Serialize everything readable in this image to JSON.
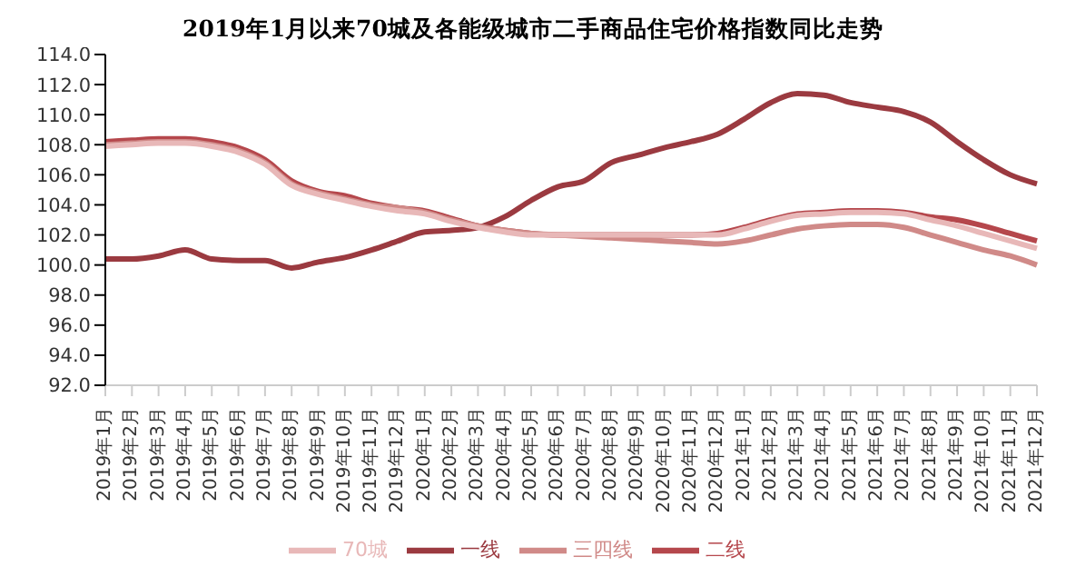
{
  "chart_data": {
    "type": "line",
    "title": "2019年1月以来70城及各能级城市二手商品住宅价格指数同比走势",
    "categories": [
      "2019年1月",
      "2019年2月",
      "2019年3月",
      "2019年4月",
      "2019年5月",
      "2019年6月",
      "2019年7月",
      "2019年8月",
      "2019年9月",
      "2019年10月",
      "2019年11月",
      "2019年12月",
      "2020年1月",
      "2020年2月",
      "2020年3月",
      "2020年4月",
      "2020年5月",
      "2020年6月",
      "2020年7月",
      "2020年8月",
      "2020年9月",
      "2020年10月",
      "2020年11月",
      "2020年12月",
      "2021年1月",
      "2021年2月",
      "2021年3月",
      "2021年4月",
      "2021年5月",
      "2021年6月",
      "2021年7月",
      "2021年8月",
      "2021年9月",
      "2021年10月",
      "2021年11月",
      "2021年12月"
    ],
    "series": [
      {
        "name": "一线",
        "color": "#9b3a40",
        "values": [
          100.4,
          100.4,
          100.6,
          101.0,
          100.4,
          100.3,
          100.3,
          99.8,
          100.2,
          100.5,
          101.0,
          101.6,
          102.2,
          102.3,
          102.5,
          103.2,
          104.3,
          105.2,
          105.6,
          106.8,
          107.3,
          107.8,
          108.2,
          108.7,
          109.7,
          110.8,
          111.4,
          111.3,
          110.8,
          110.5,
          110.2,
          109.5,
          108.2,
          107.0,
          106.0,
          105.4
        ]
      },
      {
        "name": "二线",
        "color": "#b5474c",
        "values": [
          108.2,
          108.3,
          108.4,
          108.4,
          108.2,
          107.8,
          107.0,
          105.6,
          104.9,
          104.6,
          104.1,
          103.8,
          103.6,
          103.1,
          102.6,
          102.3,
          102.1,
          102.0,
          102.0,
          102.0,
          102.0,
          102.0,
          102.0,
          102.1,
          102.5,
          103.0,
          103.4,
          103.5,
          103.6,
          103.6,
          103.5,
          103.2,
          103.0,
          102.6,
          102.1,
          101.6
        ]
      },
      {
        "name": "三四线",
        "color": "#d08a88",
        "values": [
          108.0,
          108.1,
          108.2,
          108.2,
          108.0,
          107.6,
          106.8,
          105.4,
          104.8,
          104.4,
          104.0,
          103.8,
          103.5,
          103.0,
          102.6,
          102.3,
          102.1,
          102.0,
          101.9,
          101.8,
          101.7,
          101.6,
          101.5,
          101.4,
          101.6,
          102.0,
          102.4,
          102.6,
          102.7,
          102.7,
          102.5,
          102.0,
          101.5,
          101.0,
          100.6,
          100.0
        ]
      },
      {
        "name": "70城",
        "color": "#e8b8b8",
        "values": [
          107.9,
          108.0,
          108.1,
          108.1,
          107.9,
          107.5,
          106.7,
          105.3,
          104.7,
          104.3,
          103.9,
          103.6,
          103.4,
          102.9,
          102.5,
          102.2,
          102.0,
          102.0,
          102.0,
          102.0,
          102.0,
          102.0,
          102.0,
          102.0,
          102.4,
          102.9,
          103.3,
          103.4,
          103.5,
          103.5,
          103.4,
          103.0,
          102.6,
          102.1,
          101.6,
          101.1
        ]
      }
    ],
    "ylim": [
      92,
      114
    ],
    "yticks": [
      {
        "value": 92,
        "label": "92.0"
      },
      {
        "value": 94,
        "label": "94.0"
      },
      {
        "value": 96,
        "label": "96.0"
      },
      {
        "value": 98,
        "label": "98.0"
      },
      {
        "value": 100,
        "label": "100.0"
      },
      {
        "value": 102,
        "label": "102.0"
      },
      {
        "value": 104,
        "label": "104.0"
      },
      {
        "value": 106,
        "label": "106.0"
      },
      {
        "value": 108,
        "label": "108.0"
      },
      {
        "value": 110,
        "label": "110.0"
      },
      {
        "value": 112,
        "label": "112.0"
      },
      {
        "value": 114,
        "label": "114.0"
      }
    ],
    "legend": "bottom",
    "marker": "none",
    "line_style": "solid"
  }
}
